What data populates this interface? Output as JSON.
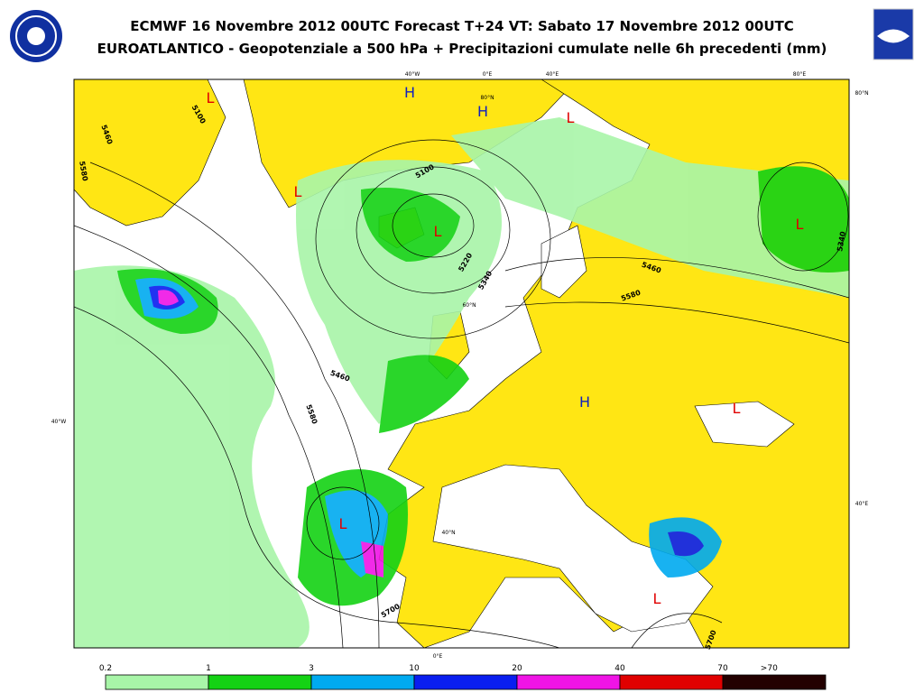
{
  "header": {
    "title": "ECMWF 16 Novembre 2012 00UTC Forecast T+24 VT: Sabato 17 Novembre 2012 00UTC",
    "subtitle": "EUROATLANTICO - Geopotenziale a 500 hPa + Precipitazioni cumulate nelle 6h precedenti (mm)"
  },
  "map": {
    "pressure_centers": [
      {
        "label": "L",
        "color": "#e00000"
      },
      {
        "label": "H",
        "color": "#1020c0"
      },
      {
        "label": "H",
        "color": "#1020c0"
      },
      {
        "label": "L",
        "color": "#e00000"
      },
      {
        "label": "L",
        "color": "#e00000"
      },
      {
        "label": "L",
        "color": "#e00000"
      },
      {
        "label": "L",
        "color": "#e00000"
      },
      {
        "label": "H",
        "color": "#1020c0"
      },
      {
        "label": "L",
        "color": "#e00000"
      },
      {
        "label": "L",
        "color": "#e00000"
      },
      {
        "label": "L",
        "color": "#e00000"
      }
    ],
    "contour_labels": [
      "5100",
      "5460",
      "5580",
      "5100",
      "5220",
      "5340",
      "5460",
      "5580",
      "5340",
      "5460",
      "5580",
      "5700",
      "5700"
    ],
    "graticule_labels": [
      "40°W",
      "0°E",
      "40°E",
      "80°E",
      "80°N",
      "80°N",
      "60°N",
      "40°W",
      "40°E",
      "40°N",
      "0°E"
    ]
  },
  "legend": {
    "thresholds": [
      "0.2",
      "1",
      "3",
      "10",
      "20",
      "40",
      "70",
      ">70"
    ],
    "colors": [
      "#a8f5a8",
      "#14d214",
      "#00aaf0",
      "#0a1ef0",
      "#f014e6",
      "#e00000",
      "#230000"
    ]
  }
}
